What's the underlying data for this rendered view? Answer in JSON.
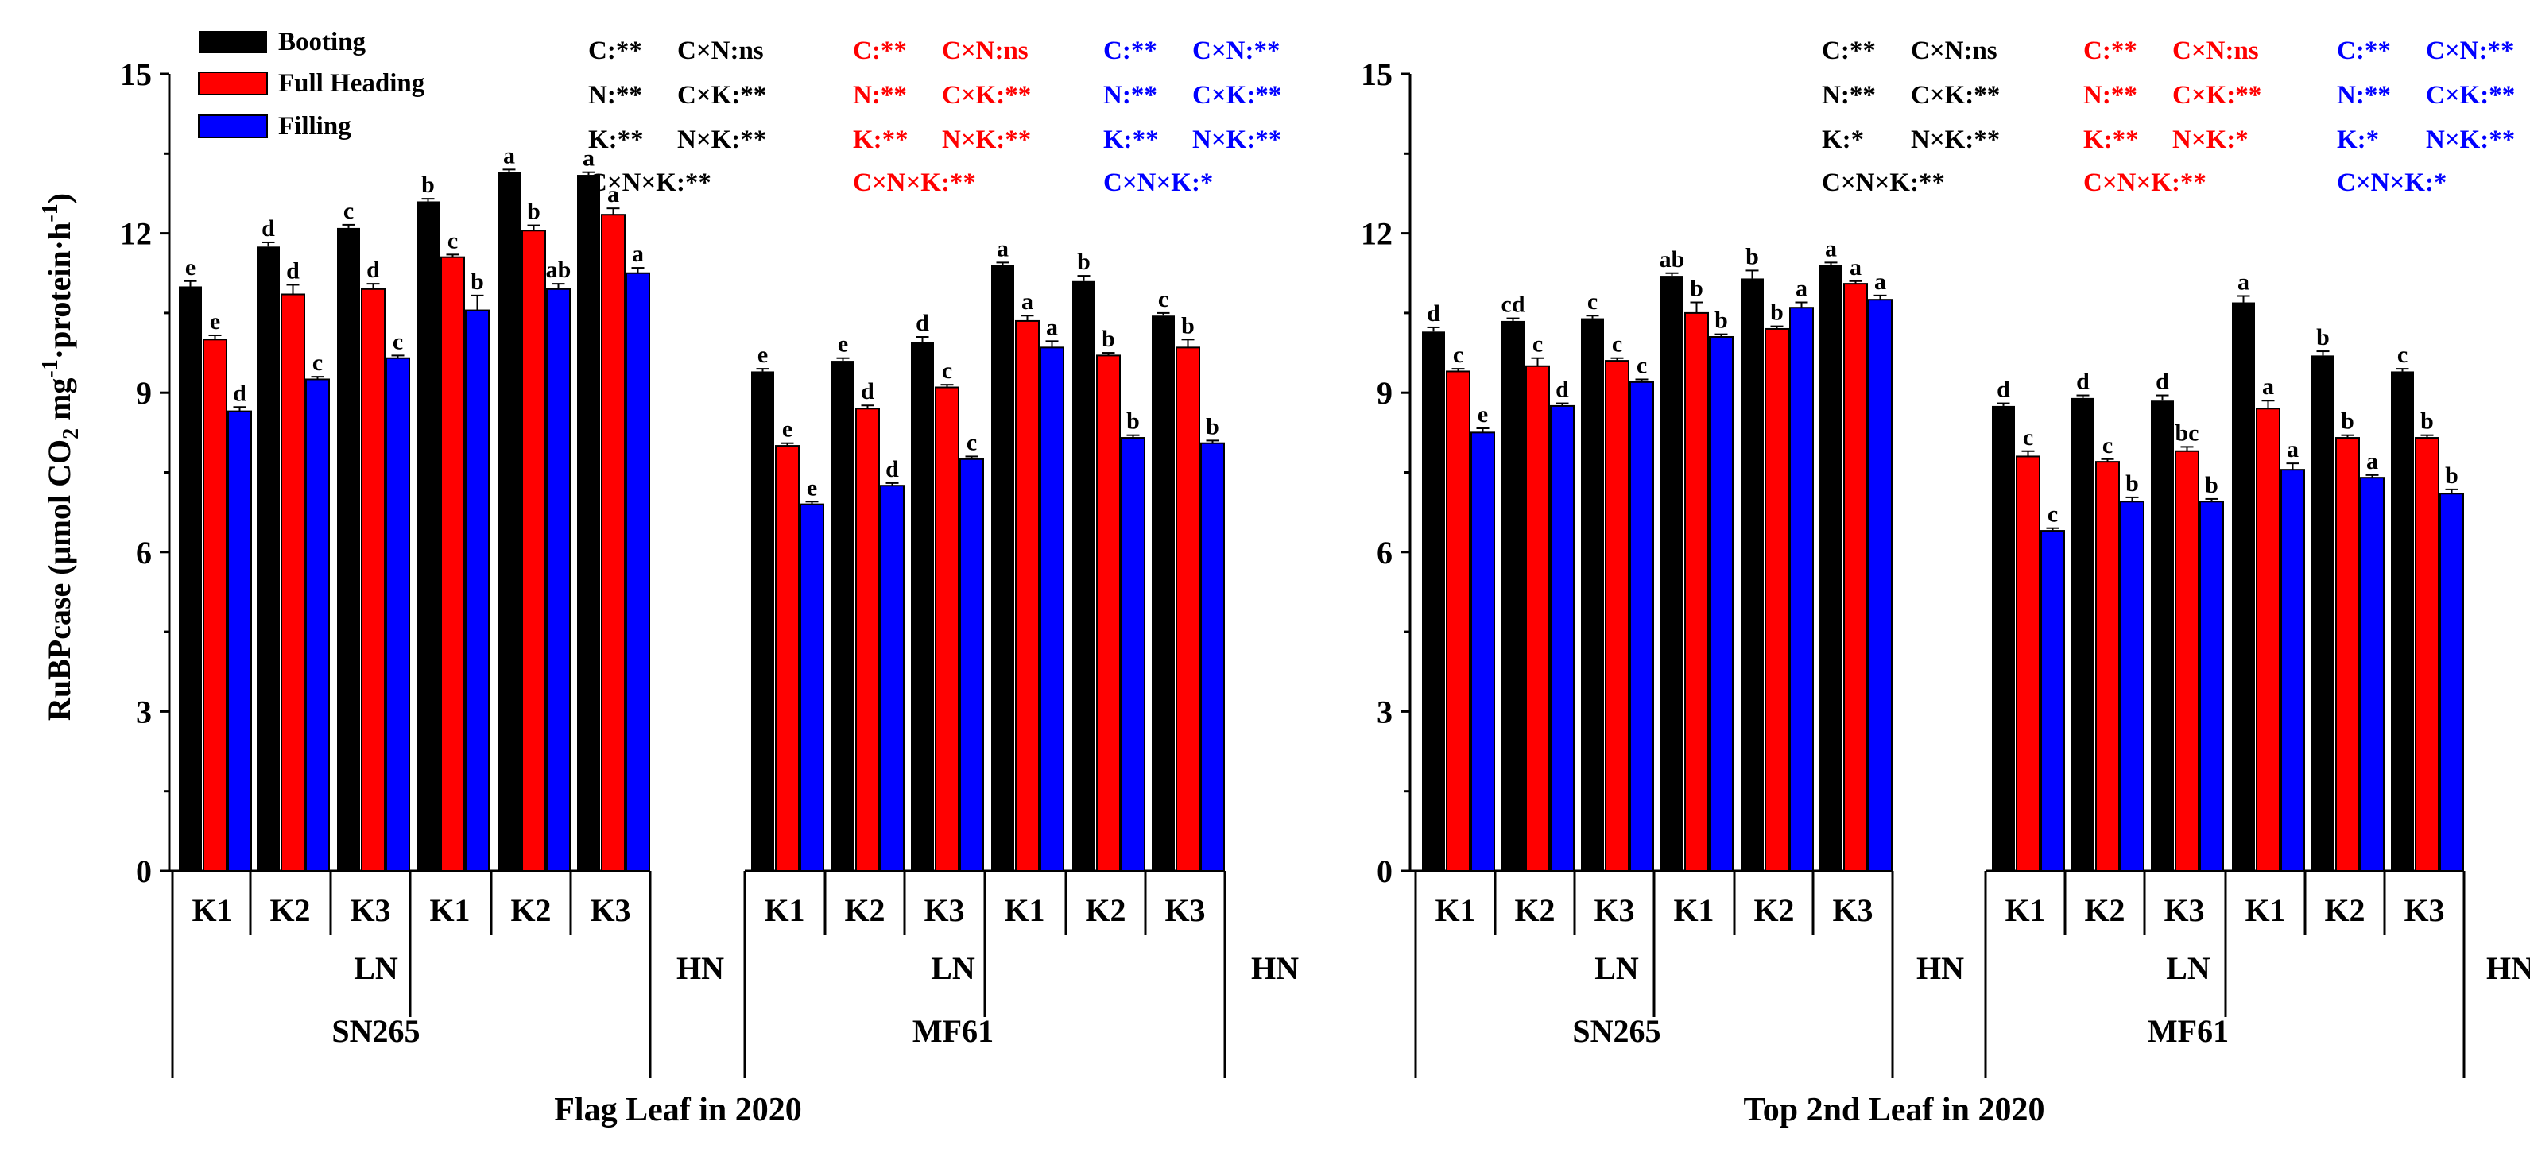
{
  "colors": {
    "axis": "#000000",
    "booting": "#000000",
    "full_heading": "#ff0000",
    "filling": "#0000ff",
    "stats_black": "#000000",
    "stats_red": "#ff0000",
    "stats_blue": "#0000ff"
  },
  "ylabel_main": "RuBPcase (µmol CO",
  "ylabel_sub": "2",
  "ylabel_unit_a": " mg",
  "ylabel_sup1": "-1",
  "ylabel_unit_b": "·protein·h",
  "ylabel_sup2": "-1",
  "ylabel_close": ")",
  "legend": [
    {
      "label": "Booting",
      "color": "#000000"
    },
    {
      "label": "Full Heading",
      "color": "#ff0000"
    },
    {
      "label": "Filling",
      "color": "#0000ff"
    }
  ],
  "chart_data": [
    {
      "type": "bar",
      "title": "Flag Leaf in 2020",
      "ylim": [
        0,
        15
      ],
      "yticks": [
        "0",
        "3",
        "6",
        "9",
        "12",
        "15"
      ],
      "ytick_values": [
        0,
        3,
        6,
        9,
        12,
        15
      ],
      "series_names": [
        "Booting",
        "Full Heading",
        "Filling"
      ],
      "categories": [
        "K1",
        "K2",
        "K3",
        "K1",
        "K2",
        "K3",
        "K1",
        "K2",
        "K3",
        "K1",
        "K2",
        "K3"
      ],
      "n_groups": [
        "LN",
        "HN",
        "LN",
        "HN"
      ],
      "cultivars": [
        "SN265",
        "MF61"
      ],
      "values": [
        [
          11.0,
          10.0,
          8.65
        ],
        [
          11.75,
          10.85,
          9.25
        ],
        [
          12.1,
          10.95,
          9.65
        ],
        [
          12.6,
          11.55,
          10.55
        ],
        [
          13.15,
          12.05,
          10.95
        ],
        [
          13.1,
          12.35,
          11.25
        ],
        [
          9.4,
          8.0,
          6.9
        ],
        [
          9.6,
          8.7,
          7.25
        ],
        [
          9.95,
          9.1,
          7.75
        ],
        [
          11.4,
          10.35,
          9.85
        ],
        [
          11.1,
          9.7,
          8.15
        ],
        [
          10.45,
          9.85,
          8.05
        ]
      ],
      "errors": [
        [
          0.1,
          0.08,
          0.08
        ],
        [
          0.08,
          0.18,
          0.05
        ],
        [
          0.06,
          0.1,
          0.05
        ],
        [
          0.05,
          0.05,
          0.28
        ],
        [
          0.05,
          0.1,
          0.1
        ],
        [
          0.05,
          0.12,
          0.1
        ],
        [
          0.05,
          0.05,
          0.05
        ],
        [
          0.05,
          0.06,
          0.05
        ],
        [
          0.1,
          0.05,
          0.05
        ],
        [
          0.05,
          0.1,
          0.12
        ],
        [
          0.1,
          0.05,
          0.05
        ],
        [
          0.05,
          0.15,
          0.05
        ]
      ],
      "letters": [
        [
          "e",
          "e",
          "d"
        ],
        [
          "d",
          "d",
          "c"
        ],
        [
          "c",
          "d",
          "c"
        ],
        [
          "b",
          "c",
          "b"
        ],
        [
          "a",
          "b",
          "ab"
        ],
        [
          "a",
          "a",
          "a"
        ],
        [
          "e",
          "e",
          "e"
        ],
        [
          "e",
          "d",
          "d"
        ],
        [
          "d",
          "c",
          "c"
        ],
        [
          "a",
          "a",
          "a"
        ],
        [
          "b",
          "b",
          "b"
        ],
        [
          "c",
          "b",
          "b"
        ]
      ],
      "stats": [
        [
          [
            "C:**",
            "C×N:ns",
            "N:**",
            "C×K:**",
            "K:**",
            "N×K:**"
          ],
          "C×N×K:**"
        ],
        [
          [
            "C:**",
            "C×N:ns",
            "N:**",
            "C×K:**",
            "K:**",
            "N×K:**"
          ],
          "C×N×K:**"
        ],
        [
          [
            "C:**",
            "C×N:**",
            "N:**",
            "C×K:**",
            "K:**",
            "N×K:**"
          ],
          "C×N×K:*"
        ]
      ]
    },
    {
      "type": "bar",
      "title": "Top 2nd Leaf in 2020",
      "ylim": [
        0,
        15
      ],
      "yticks": [
        "0",
        "3",
        "6",
        "9",
        "12",
        "15"
      ],
      "ytick_values": [
        0,
        3,
        6,
        9,
        12,
        15
      ],
      "series_names": [
        "Booting",
        "Full Heading",
        "Filling"
      ],
      "categories": [
        "K1",
        "K2",
        "K3",
        "K1",
        "K2",
        "K3",
        "K1",
        "K2",
        "K3",
        "K1",
        "K2",
        "K3"
      ],
      "n_groups": [
        "LN",
        "HN",
        "LN",
        "HN"
      ],
      "cultivars": [
        "SN265",
        "MF61"
      ],
      "values": [
        [
          10.15,
          9.4,
          8.25
        ],
        [
          10.35,
          9.5,
          8.75
        ],
        [
          10.4,
          9.6,
          9.2
        ],
        [
          11.2,
          10.5,
          10.05
        ],
        [
          11.15,
          10.2,
          10.6
        ],
        [
          11.4,
          11.05,
          10.75
        ],
        [
          8.75,
          7.8,
          6.4
        ],
        [
          8.9,
          7.7,
          6.95
        ],
        [
          8.85,
          7.9,
          6.95
        ],
        [
          10.7,
          8.7,
          7.55
        ],
        [
          9.7,
          8.15,
          7.4
        ],
        [
          9.4,
          8.15,
          7.1
        ]
      ],
      "errors": [
        [
          0.08,
          0.05,
          0.08
        ],
        [
          0.05,
          0.15,
          0.05
        ],
        [
          0.05,
          0.05,
          0.05
        ],
        [
          0.05,
          0.2,
          0.05
        ],
        [
          0.15,
          0.05,
          0.1
        ],
        [
          0.05,
          0.05,
          0.08
        ],
        [
          0.05,
          0.1,
          0.05
        ],
        [
          0.05,
          0.05,
          0.08
        ],
        [
          0.1,
          0.08,
          0.05
        ],
        [
          0.12,
          0.15,
          0.12
        ],
        [
          0.08,
          0.05,
          0.05
        ],
        [
          0.05,
          0.05,
          0.08
        ]
      ],
      "letters": [
        [
          "d",
          "c",
          "e"
        ],
        [
          "cd",
          "c",
          "d"
        ],
        [
          "c",
          "c",
          "c"
        ],
        [
          "ab",
          "b",
          "b"
        ],
        [
          "b",
          "b",
          "a"
        ],
        [
          "a",
          "a",
          "a"
        ],
        [
          "d",
          "c",
          "c"
        ],
        [
          "d",
          "c",
          "b"
        ],
        [
          "d",
          "bc",
          "b"
        ],
        [
          "a",
          "a",
          "a"
        ],
        [
          "b",
          "b",
          "a"
        ],
        [
          "c",
          "b",
          "b"
        ]
      ],
      "stats": [
        [
          [
            "C:**",
            "C×N:ns",
            "N:**",
            "C×K:**",
            "K:*",
            "N×K:**"
          ],
          "C×N×K:**"
        ],
        [
          [
            "C:**",
            "C×N:ns",
            "N:**",
            "C×K:**",
            "K:**",
            "N×K:*"
          ],
          "C×N×K:**"
        ],
        [
          [
            "C:**",
            "C×N:**",
            "N:**",
            "C×K:**",
            "K:*",
            "N×K:**"
          ],
          "C×N×K:*"
        ]
      ]
    }
  ]
}
